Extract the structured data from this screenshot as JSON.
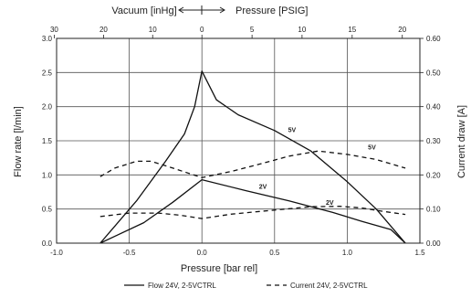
{
  "chart_data": {
    "type": "line",
    "xlabel": "Pressure [bar rel]",
    "ylabel_left": "Flow rate [l/min]",
    "ylabel_right": "Current draw [A]",
    "top_axis": {
      "left_label": "Vacuum [inHg]",
      "right_label": "Pressure [PSIG]",
      "ticks": [
        {
          "value": -1.016,
          "label": "30"
        },
        {
          "value": -0.677,
          "label": "20"
        },
        {
          "value": -0.339,
          "label": "10"
        },
        {
          "value": 0,
          "label": "0"
        },
        {
          "value": 0.345,
          "label": "5"
        },
        {
          "value": 0.689,
          "label": "10"
        },
        {
          "value": 1.034,
          "label": "15"
        },
        {
          "value": 1.379,
          "label": "20"
        }
      ]
    },
    "xlim": [
      -1.0,
      1.5
    ],
    "ylim_left": [
      0,
      3.0
    ],
    "ylim_right": [
      0,
      0.6
    ],
    "x_ticks": [
      "-1.0",
      "-0.5",
      "0.0",
      "0.5",
      "1.0",
      "1.5"
    ],
    "y_left_ticks": [
      "0.0",
      "0.5",
      "1.0",
      "1.5",
      "2.0",
      "2.5",
      "3.0"
    ],
    "y_right_ticks": [
      "0.00",
      "0.10",
      "0.20",
      "0.30",
      "0.40",
      "0.50",
      "0.60"
    ],
    "series": [
      {
        "name": "5V",
        "kind": "flow",
        "axis": "left",
        "dash": "solid",
        "label_at": [
          0.62,
          1.63
        ],
        "points": [
          [
            -0.7,
            0.0
          ],
          [
            -0.45,
            0.62
          ],
          [
            -0.25,
            1.2
          ],
          [
            -0.12,
            1.6
          ],
          [
            -0.05,
            2.0
          ],
          [
            0.0,
            2.52
          ],
          [
            0.1,
            2.1
          ],
          [
            0.25,
            1.88
          ],
          [
            0.5,
            1.65
          ],
          [
            0.75,
            1.35
          ],
          [
            1.0,
            0.9
          ],
          [
            1.2,
            0.5
          ],
          [
            1.4,
            0.0
          ]
        ]
      },
      {
        "name": "2V",
        "kind": "flow",
        "axis": "left",
        "dash": "solid",
        "label_at": [
          0.42,
          0.8
        ],
        "points": [
          [
            -0.7,
            0.0
          ],
          [
            -0.4,
            0.3
          ],
          [
            -0.2,
            0.6
          ],
          [
            0.0,
            0.93
          ],
          [
            0.3,
            0.77
          ],
          [
            0.6,
            0.62
          ],
          [
            0.9,
            0.45
          ],
          [
            1.1,
            0.32
          ],
          [
            1.3,
            0.2
          ],
          [
            1.4,
            0.0
          ]
        ]
      },
      {
        "name": "5V",
        "kind": "current",
        "axis": "right",
        "dash": "dashed",
        "label_at": [
          1.17,
          0.274
        ],
        "points": [
          [
            -0.7,
            0.195
          ],
          [
            -0.6,
            0.22
          ],
          [
            -0.45,
            0.24
          ],
          [
            -0.35,
            0.24
          ],
          [
            -0.2,
            0.22
          ],
          [
            0.0,
            0.192
          ],
          [
            0.2,
            0.21
          ],
          [
            0.4,
            0.232
          ],
          [
            0.6,
            0.255
          ],
          [
            0.8,
            0.27
          ],
          [
            1.0,
            0.26
          ],
          [
            1.2,
            0.245
          ],
          [
            1.4,
            0.22
          ]
        ]
      },
      {
        "name": "2V",
        "kind": "current",
        "axis": "right",
        "dash": "dashed",
        "label_at": [
          0.88,
          0.112
        ],
        "points": [
          [
            -0.7,
            0.078
          ],
          [
            -0.5,
            0.088
          ],
          [
            -0.3,
            0.088
          ],
          [
            -0.15,
            0.082
          ],
          [
            0.0,
            0.072
          ],
          [
            0.2,
            0.085
          ],
          [
            0.5,
            0.097
          ],
          [
            0.75,
            0.107
          ],
          [
            0.95,
            0.108
          ],
          [
            1.1,
            0.103
          ],
          [
            1.25,
            0.093
          ],
          [
            1.4,
            0.084
          ]
        ]
      }
    ],
    "legend": {
      "placement": "bottom",
      "items": [
        {
          "label": "Flow 24V, 2-5VCTRL",
          "dash": "solid"
        },
        {
          "label": "Current 24V, 2-5VCTRL",
          "dash": "dashed"
        }
      ]
    },
    "grid": true
  }
}
